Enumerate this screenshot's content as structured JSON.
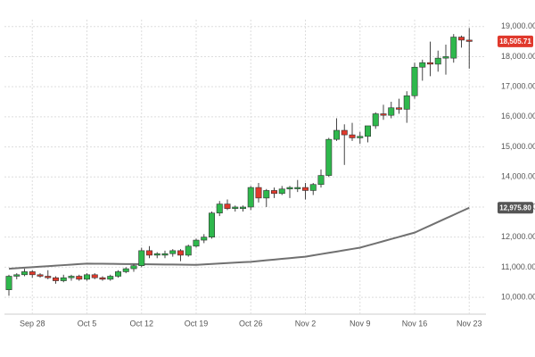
{
  "chart_data": {
    "type": "candlestick",
    "categories": [
      null,
      null,
      null,
      "Sep 28",
      null,
      null,
      null,
      null,
      null,
      null,
      "Oct 5",
      null,
      null,
      null,
      null,
      null,
      null,
      "Oct 12",
      null,
      null,
      null,
      null,
      null,
      null,
      "Oct 19",
      null,
      null,
      null,
      null,
      null,
      null,
      "Oct 26",
      null,
      null,
      null,
      null,
      null,
      null,
      "Nov 2",
      null,
      null,
      null,
      null,
      null,
      null,
      "Nov 9",
      null,
      null,
      null,
      null,
      null,
      null,
      "Nov 16",
      null,
      null,
      null,
      null,
      null,
      null,
      "Nov 23"
    ],
    "open": [
      10250,
      10700,
      10750,
      10850,
      10750,
      10700,
      10650,
      10550,
      10650,
      10700,
      10600,
      10750,
      10650,
      10600,
      10700,
      10850,
      10950,
      11050,
      11550,
      11400,
      11400,
      11450,
      11550,
      11400,
      11700,
      11900,
      12000,
      12800,
      13100,
      12950,
      12950,
      13000,
      13650,
      13300,
      13550,
      13450,
      13600,
      13650,
      13650,
      13550,
      13750,
      14050,
      15250,
      15550,
      15400,
      15300,
      15350,
      15700,
      16100,
      16050,
      16300,
      16250,
      16700,
      17650,
      17800,
      17750,
      17950,
      17950,
      18650,
      18550
    ],
    "high": [
      10750,
      10800,
      10950,
      10900,
      10800,
      10900,
      10700,
      10750,
      10750,
      10750,
      10800,
      10800,
      10700,
      10750,
      10900,
      11000,
      11100,
      11650,
      11700,
      11500,
      11550,
      11600,
      11600,
      11750,
      11950,
      12100,
      12850,
      13200,
      13250,
      13050,
      13050,
      13700,
      13800,
      13600,
      13650,
      13700,
      13700,
      13900,
      13800,
      13800,
      14250,
      15300,
      15950,
      15750,
      15800,
      15500,
      15700,
      16150,
      16400,
      16500,
      16600,
      16850,
      17800,
      17900,
      18500,
      18200,
      18400,
      18750,
      18700,
      18950
    ],
    "low": [
      10050,
      10600,
      10700,
      10650,
      10650,
      10600,
      10450,
      10500,
      10550,
      10550,
      10550,
      10600,
      10550,
      10550,
      10650,
      10800,
      10850,
      11000,
      11300,
      11300,
      11300,
      11350,
      11200,
      11350,
      11650,
      11800,
      11950,
      12700,
      12900,
      12850,
      12850,
      12900,
      13150,
      13000,
      13300,
      13400,
      13300,
      13500,
      13250,
      13400,
      13650,
      14000,
      15200,
      14400,
      15200,
      15100,
      15150,
      15600,
      15900,
      15950,
      16100,
      15800,
      16600,
      17200,
      17350,
      17500,
      17400,
      17800,
      18300,
      17600
    ],
    "close": [
      10700,
      10750,
      10850,
      10750,
      10700,
      10650,
      10550,
      10650,
      10700,
      10600,
      10750,
      10650,
      10600,
      10700,
      10850,
      10950,
      11050,
      11550,
      11400,
      11450,
      11450,
      11550,
      11400,
      11700,
      11900,
      12000,
      12800,
      13100,
      12950,
      13000,
      13000,
      13650,
      13300,
      13550,
      13450,
      13600,
      13650,
      13650,
      13550,
      13750,
      14050,
      15250,
      15550,
      15400,
      15300,
      15350,
      15700,
      16100,
      16050,
      16300,
      16250,
      16700,
      17650,
      17800,
      17750,
      17950,
      18000,
      18650,
      18550,
      18505.71
    ],
    "up_color": "#2eb84c",
    "down_color": "#e0392c",
    "price_label": {
      "value": 18505.71,
      "label": "18,505.71"
    },
    "moving_average": {
      "color": "#707070",
      "values": [
        10950,
        10967,
        10984,
        11001,
        11018,
        11035,
        11052,
        11069,
        11086,
        11103,
        11120,
        11117,
        11114,
        11111,
        11109,
        11106,
        11103,
        11100,
        11097,
        11094,
        11091,
        11089,
        11086,
        11083,
        11080,
        11094,
        11109,
        11123,
        11137,
        11151,
        11166,
        11180,
        11204,
        11229,
        11253,
        11277,
        11301,
        11326,
        11350,
        11393,
        11436,
        11479,
        11521,
        11564,
        11607,
        11650,
        11721,
        11793,
        11864,
        11936,
        12007,
        12079,
        12150,
        12268,
        12386,
        12504,
        12622,
        12740,
        12858,
        12975.8
      ],
      "last_label": {
        "value": 12975.8,
        "label": "12,975.80"
      }
    },
    "ylim": [
      9350,
      19230
    ],
    "yticks": [
      {
        "value": 10000,
        "label": "10,000.00"
      },
      {
        "value": 11000,
        "label": "11,000.00"
      },
      {
        "value": 12000,
        "label": "12,000.00"
      },
      {
        "value": 13000,
        "label": "13,000.00"
      },
      {
        "value": 14000,
        "label": "14,000.00"
      },
      {
        "value": 15000,
        "label": "15,000.00"
      },
      {
        "value": 16000,
        "label": "16,000.00"
      },
      {
        "value": 17000,
        "label": "17,000.00"
      },
      {
        "value": 18000,
        "label": "18,000.00"
      },
      {
        "value": 19000,
        "label": "19,000.00"
      }
    ],
    "grid": true
  }
}
